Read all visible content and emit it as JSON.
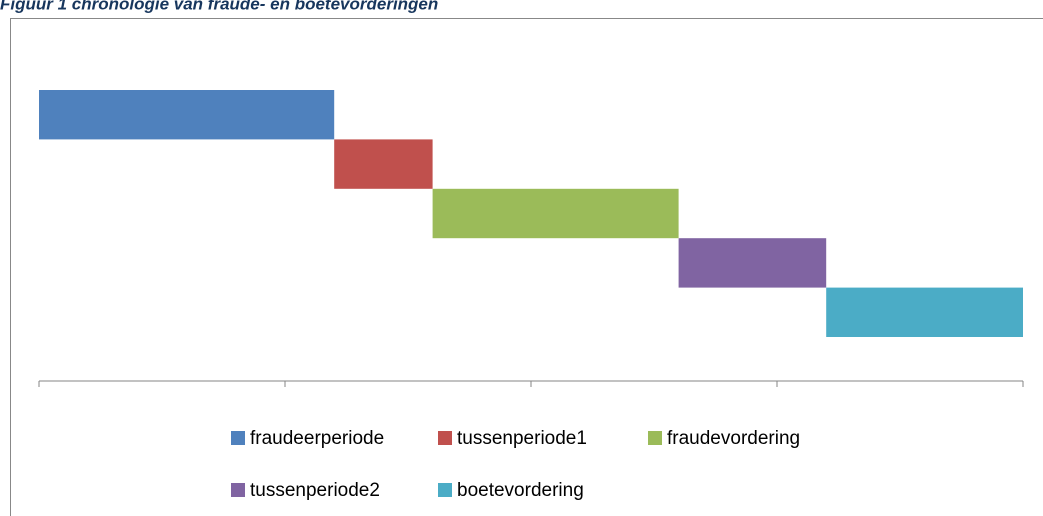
{
  "chart_data": {
    "type": "gantt",
    "title": "Figuur 1 chronologie van fraude- en boetevorderingen",
    "series": [
      {
        "name": "fraudeerperiode",
        "color": "#4f81bd",
        "value": 6
      },
      {
        "name": "tussenperiode1",
        "color": "#c0504d",
        "value": 2
      },
      {
        "name": "fraudevordering",
        "color": "#9bbb59",
        "value": 5
      },
      {
        "name": "tussenperiode2",
        "color": "#8064a2",
        "value": 3
      },
      {
        "name": "boetevordering",
        "color": "#4bacc6",
        "value": 4
      }
    ],
    "xlim": [
      0,
      20
    ],
    "xticks": [
      0,
      5,
      10,
      15,
      20
    ],
    "legend": "bottom"
  }
}
